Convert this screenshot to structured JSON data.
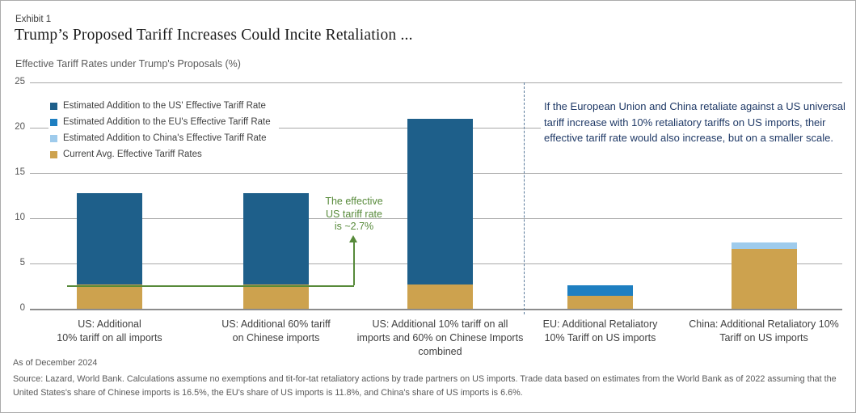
{
  "header": {
    "exhibit": "Exhibit 1",
    "title": "Trump’s Proposed Tariff Increases Could Incite Retaliation ...",
    "subtitle": "Effective Tariff Rates under Trump's Proposals (%)"
  },
  "legend": {
    "items": [
      {
        "key": "us-addition",
        "label": "Estimated Addition to the US' Effective Tariff Rate",
        "color": "#1E5F8A"
      },
      {
        "key": "eu-addition",
        "label": "Estimated Addition to the EU's Effective Tariff Rate",
        "color": "#1E7FC1"
      },
      {
        "key": "china-addition",
        "label": "Estimated Addition to China's Effective Tariff Rate",
        "color": "#9ECBEC"
      },
      {
        "key": "current-avg",
        "label": "Current Avg. Effective Tariff Rates",
        "color": "#CDA24E"
      }
    ]
  },
  "annotations": {
    "retaliation_note": "If the European Union and China retaliate against a US universal tariff increase with 10% retaliatory tariffs on US imports, their effective tariff rate would also increase, but on a smaller scale.",
    "green_note_lines": [
      "The effective",
      "US tariff rate",
      "is ~2.7%"
    ],
    "green_note_color": "#578A3A",
    "retaliation_note_color": "#203A67"
  },
  "footer": {
    "as_of": "As of December 2024",
    "source": "Source: Lazard, World Bank. Calculations assume no exemptions and tit-for-tat retaliatory actions by trade partners on US imports. Trade data based on estimates from the World Bank as of 2022 assuming that the United States's share of Chinese imports is 16.5%, the EU's share of US imports is 11.8%, and China's share of US imports is 6.6%."
  },
  "chart_data": {
    "type": "bar",
    "stacked": true,
    "title": "Effective Tariff Rates under Trump's Proposals (%)",
    "ylim": [
      0,
      25
    ],
    "yticks": [
      0,
      5,
      10,
      15,
      20,
      25
    ],
    "grid": true,
    "legend_position": "upper-left-inside",
    "categories": [
      "US: Additional 10% tariff on all imports",
      "US: Additional 60% tariff on Chinese imports",
      "US: Additional 10% tariff on all imports and 60% on Chinese Imports combined",
      "EU: Additional Retaliatory 10% Tariff on US imports",
      "China: Additional Retaliatory 10% Tariff on US imports"
    ],
    "category_label_lines": [
      [
        "US: Additional",
        "10% tariff on all imports"
      ],
      [
        "US: Additional 60% tariff",
        "on Chinese imports"
      ],
      [
        "US: Additional 10% tariff on all",
        "imports and 60% on Chinese Imports",
        "combined"
      ],
      [
        "EU: Additional Retaliatory",
        "10% Tariff on US imports"
      ],
      [
        "China: Additional Retaliatory 10%",
        "Tariff on US imports"
      ]
    ],
    "series": [
      {
        "name": "Current Avg. Effective Tariff Rates",
        "key": "current-avg",
        "color": "#CDA24E",
        "values": [
          2.7,
          2.7,
          2.7,
          1.4,
          6.6
        ]
      },
      {
        "name": "Estimated Addition to the US' Effective Tariff Rate",
        "key": "us-addition",
        "color": "#1E5F8A",
        "values": [
          10.1,
          10.1,
          18.3,
          0,
          0
        ]
      },
      {
        "name": "Estimated Addition to the EU's Effective Tariff Rate",
        "key": "eu-addition",
        "color": "#1E7FC1",
        "values": [
          0,
          0,
          0,
          1.2,
          0
        ]
      },
      {
        "name": "Estimated Addition to China's Effective Tariff Rate",
        "key": "china-addition",
        "color": "#9ECBEC",
        "values": [
          0,
          0,
          0,
          0,
          0.7
        ]
      }
    ],
    "stack_totals": [
      12.8,
      12.8,
      21.0,
      2.6,
      7.3
    ],
    "divider": {
      "style": "dashed",
      "after_category_index": 2,
      "color": "#5B7B9C"
    }
  }
}
